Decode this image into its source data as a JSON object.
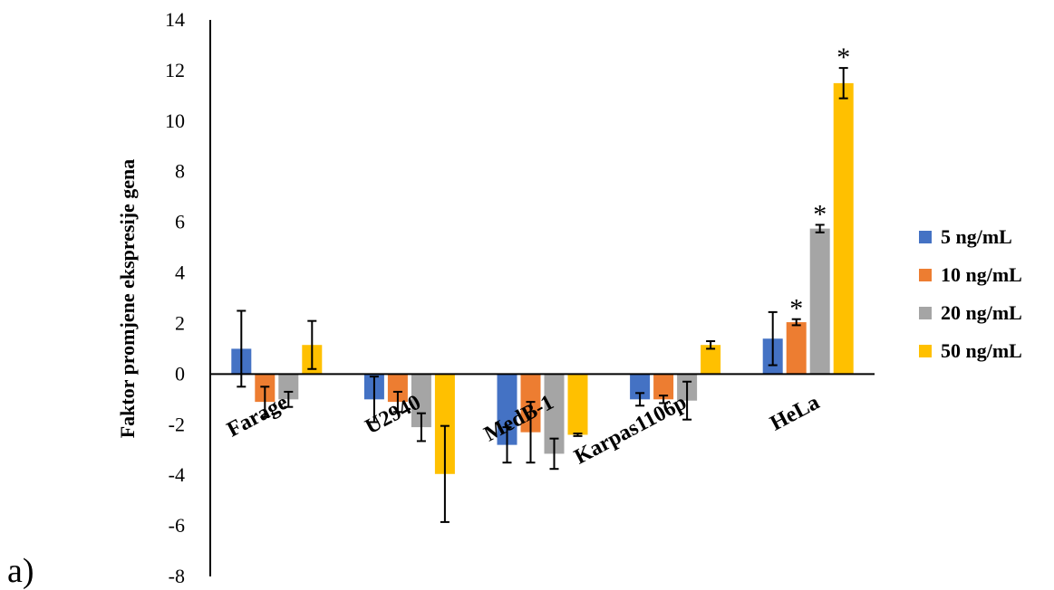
{
  "panel_label": "a)",
  "chart_data": {
    "type": "bar",
    "title": "",
    "xlabel": "",
    "ylabel": "Faktor promjene ekspresije gena",
    "ylim": [
      -8,
      14
    ],
    "yticks": [
      14,
      12,
      10,
      8,
      6,
      4,
      2,
      0,
      -2,
      -4,
      -6,
      -8
    ],
    "grid": false,
    "legend_position": "right",
    "categories": [
      "Farage",
      "U2940",
      "MedB-1",
      "Karpas1106p",
      "HeLa"
    ],
    "series": [
      {
        "name": "5 ng/mL",
        "color": "#4472C4",
        "values": [
          1.0,
          -1.0,
          -2.8,
          -1.0,
          1.4
        ],
        "errors": [
          1.5,
          0.9,
          0.7,
          0.25,
          1.05
        ],
        "significant": [
          false,
          false,
          false,
          false,
          false
        ]
      },
      {
        "name": "10 ng/mL",
        "color": "#ED7D31",
        "values": [
          -1.1,
          -1.1,
          -2.3,
          -1.0,
          2.05
        ],
        "errors": [
          0.6,
          0.4,
          1.2,
          0.15,
          0.12
        ],
        "significant": [
          false,
          false,
          false,
          false,
          true
        ]
      },
      {
        "name": "20 ng/mL",
        "color": "#A5A5A5",
        "values": [
          -1.0,
          -2.1,
          -3.15,
          -1.05,
          5.75
        ],
        "errors": [
          0.3,
          0.55,
          0.6,
          0.75,
          0.15
        ],
        "significant": [
          false,
          false,
          false,
          false,
          true
        ]
      },
      {
        "name": "50 ng/mL",
        "color": "#FFC000",
        "values": [
          1.15,
          -3.95,
          -2.4,
          1.15,
          11.5
        ],
        "errors": [
          0.95,
          1.9,
          0.05,
          0.15,
          0.6
        ],
        "significant": [
          false,
          false,
          false,
          false,
          true
        ]
      }
    ],
    "significance_marker": "*"
  }
}
